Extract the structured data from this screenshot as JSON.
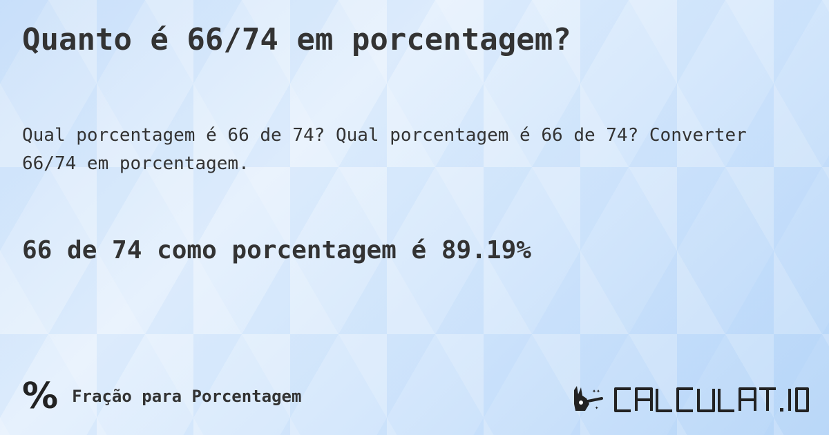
{
  "title": "Quanto é 66/74 em porcentagem?",
  "description": "Qual porcentagem é 66 de 74? Qual porcentagem é 66 de 74? Converter 66/74 em porcentagem.",
  "answer": "66 de 74 como porcentagem é 89.19%",
  "category": {
    "icon": "percent-icon",
    "symbol": "%",
    "label": "Fração para Porcentagem"
  },
  "logo": {
    "text": "CALCULAT.IO",
    "icon": "magic-hand-icon"
  }
}
